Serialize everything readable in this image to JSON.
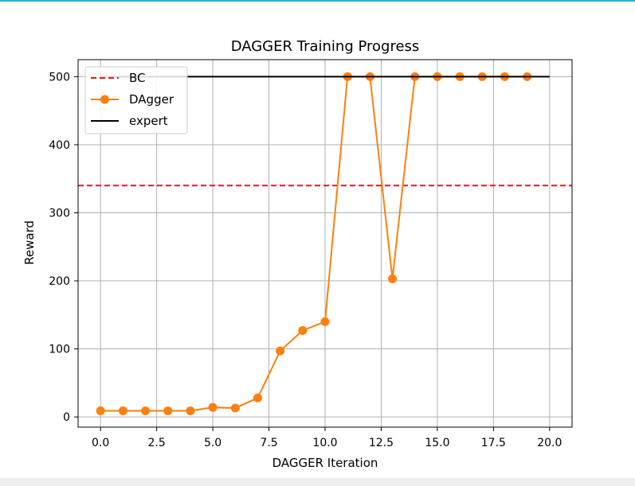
{
  "colors": {
    "top_accent": "#1fb7d4",
    "bc": "#e01a1a",
    "dagger": "#ff7f0e",
    "expert": "#000000",
    "grid": "#b0b0b0"
  },
  "chart_data": {
    "type": "line",
    "title": "DAGGER Training Progress",
    "xlabel": "DAGGER Iteration",
    "ylabel": "Reward",
    "xlim": [
      -1.0,
      21.0
    ],
    "ylim": [
      -15,
      525
    ],
    "xticks": [
      0.0,
      2.5,
      5.0,
      7.5,
      10.0,
      12.5,
      15.0,
      17.5,
      20.0
    ],
    "xtick_labels": [
      "0.0",
      "2.5",
      "5.0",
      "7.5",
      "10.0",
      "12.5",
      "15.0",
      "17.5",
      "20.0"
    ],
    "yticks": [
      0,
      100,
      200,
      300,
      400,
      500
    ],
    "ytick_labels": [
      "0",
      "100",
      "200",
      "300",
      "400",
      "500"
    ],
    "grid": true,
    "legend_position": "upper-left",
    "series": [
      {
        "name": "BC",
        "style": "dashed",
        "color": "#e01a1a",
        "x": [
          -1.0,
          21.0
        ],
        "y": [
          340,
          340
        ]
      },
      {
        "name": "DAgger",
        "style": "line-marker",
        "color": "#ff7f0e",
        "x": [
          0,
          1,
          2,
          3,
          4,
          5,
          6,
          7,
          8,
          9,
          10,
          11,
          12,
          13,
          14,
          15,
          16,
          17,
          18,
          19
        ],
        "y": [
          9,
          9,
          9,
          9,
          9,
          14,
          13,
          28,
          97,
          127,
          140,
          500,
          500,
          203,
          500,
          500,
          500,
          500,
          500,
          500
        ]
      },
      {
        "name": "expert",
        "style": "solid",
        "color": "#000000",
        "x": [
          0,
          20
        ],
        "y": [
          500,
          500
        ]
      }
    ]
  }
}
